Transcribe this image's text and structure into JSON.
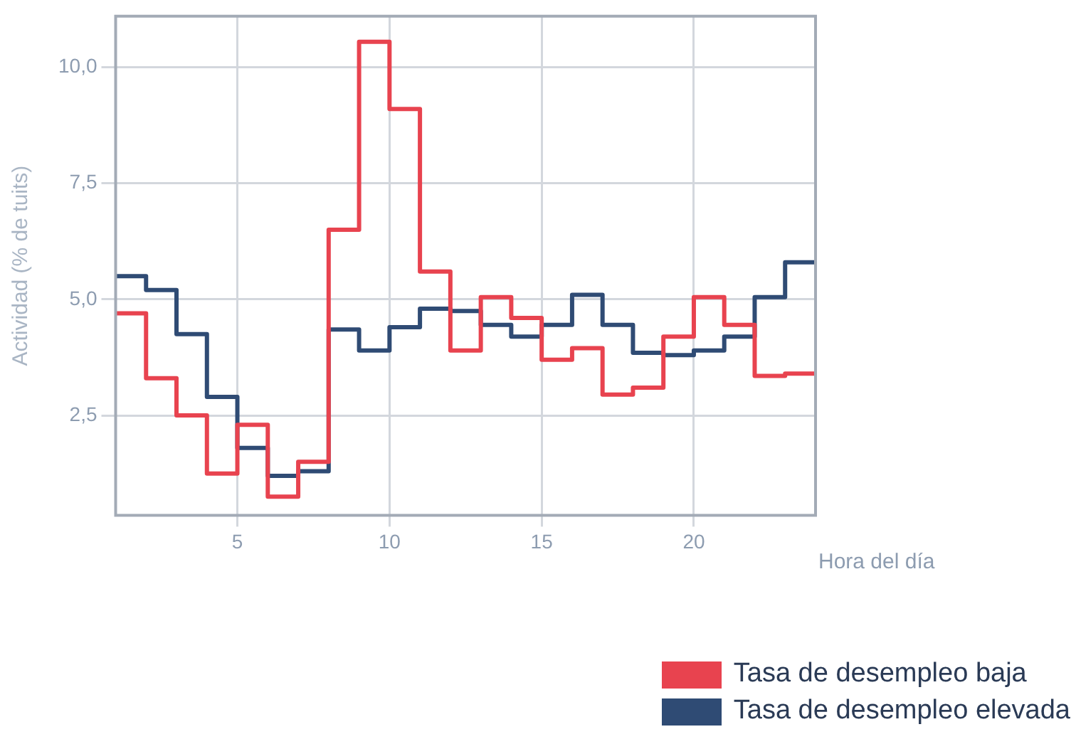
{
  "chart_data": {
    "type": "step",
    "xlabel": "Hora del día",
    "ylabel": "Actividad (% de tuits)",
    "x": [
      1,
      2,
      3,
      4,
      5,
      6,
      7,
      8,
      9,
      10,
      11,
      12,
      13,
      14,
      15,
      16,
      17,
      18,
      19,
      20,
      21,
      22,
      23,
      24
    ],
    "series": [
      {
        "name": "Tasa de desempleo baja",
        "color": "#e8434f",
        "values": [
          4.7,
          3.3,
          2.5,
          1.25,
          2.3,
          0.75,
          1.5,
          6.5,
          10.55,
          9.1,
          5.6,
          3.9,
          5.05,
          4.6,
          3.7,
          3.95,
          2.95,
          3.1,
          4.2,
          5.05,
          4.45,
          3.35,
          3.4,
          3.4
        ]
      },
      {
        "name": "Tasa de desempleo elevada",
        "color": "#2f4b74",
        "values": [
          5.5,
          5.2,
          4.25,
          2.9,
          1.8,
          1.2,
          1.3,
          4.35,
          3.9,
          4.4,
          4.8,
          4.75,
          4.45,
          4.2,
          4.45,
          5.1,
          4.45,
          3.85,
          3.8,
          3.9,
          4.2,
          5.05,
          5.8,
          5.8
        ]
      }
    ],
    "xlim": [
      1,
      24
    ],
    "xticks": [
      5,
      10,
      15,
      20
    ],
    "ylim": [
      0.35,
      11.1
    ],
    "yticks": [
      {
        "value": 2.5,
        "label": "2,5"
      },
      {
        "value": 5,
        "label": "5,0"
      },
      {
        "value": 7.5,
        "label": "7,5"
      },
      {
        "value": 10,
        "label": "10,0"
      }
    ],
    "grid": true,
    "legend": "bottom right",
    "marker": "none",
    "line_style": "solid"
  }
}
